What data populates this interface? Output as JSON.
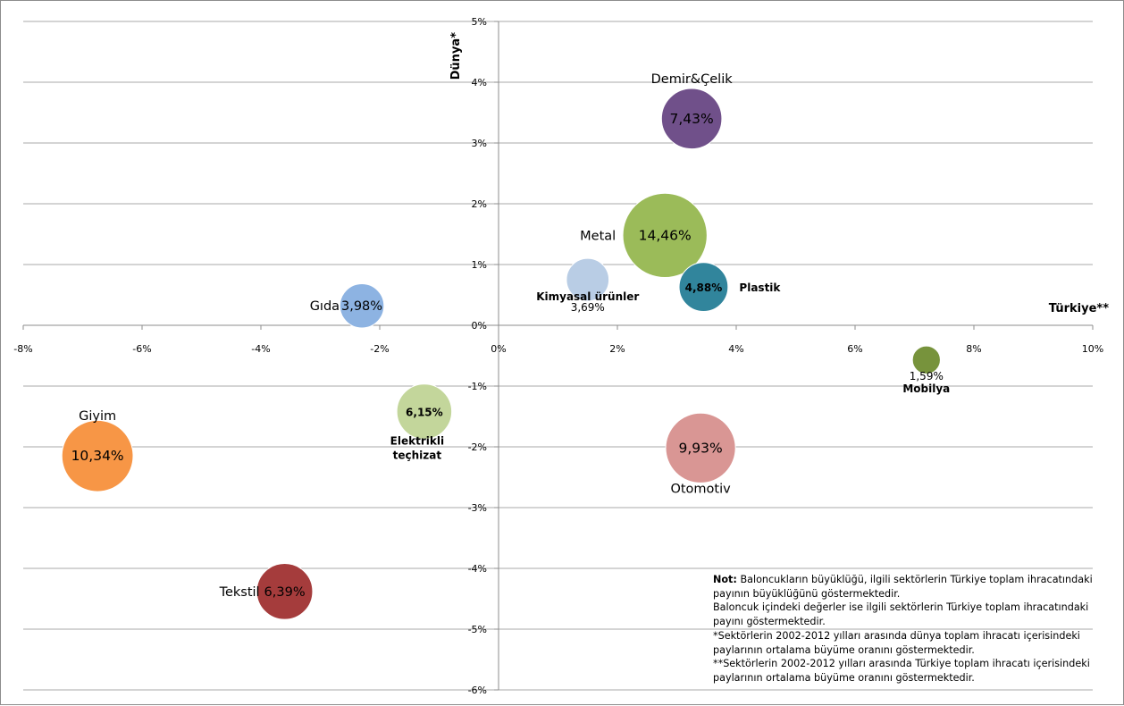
{
  "chart_data": {
    "type": "scatter",
    "subtype": "bubble",
    "xlabel": "Türkiye**",
    "ylabel": "Dünya*",
    "xlim": [
      -8,
      10
    ],
    "ylim": [
      -6,
      5
    ],
    "x_ticks": [
      "-8%",
      "-6%",
      "-4%",
      "-2%",
      "0%",
      "2%",
      "4%",
      "6%",
      "8%",
      "10%"
    ],
    "y_ticks": [
      "5%",
      "4%",
      "3%",
      "2%",
      "1%",
      "0%",
      "-1%",
      "-2%",
      "-3%",
      "-4%",
      "-5%",
      "-6%"
    ],
    "grid": "horizontal",
    "series": [
      {
        "name": "Demir&Çelik",
        "x": 3.25,
        "y": 3.4,
        "size": 7.43,
        "value_label": "7,43%",
        "color": "#70508a"
      },
      {
        "name": "Metal",
        "x": 2.8,
        "y": 1.48,
        "size": 14.46,
        "value_label": "14,46%",
        "color": "#9bbb59"
      },
      {
        "name": "Kimyasal ürünler",
        "x": 1.5,
        "y": 0.75,
        "size": 3.69,
        "value_label": "3,69%",
        "color": "#b9cde5"
      },
      {
        "name": "Plastik",
        "x": 3.45,
        "y": 0.63,
        "size": 4.88,
        "value_label": "4,88%",
        "color": "#31859c"
      },
      {
        "name": "Gıda",
        "x": -2.3,
        "y": 0.32,
        "size": 3.98,
        "value_label": "3,98%",
        "color": "#8db3e2"
      },
      {
        "name": "Mobilya",
        "x": 7.2,
        "y": -0.57,
        "size": 1.59,
        "value_label": "1,59%",
        "color": "#77933c"
      },
      {
        "name": "Elektrikli teçhizat",
        "x": -1.25,
        "y": -1.42,
        "size": 6.15,
        "value_label": "6,15%",
        "color": "#c3d69b"
      },
      {
        "name": "Giyim",
        "x": -6.75,
        "y": -2.15,
        "size": 10.34,
        "value_label": "10,34%",
        "color": "#f79646"
      },
      {
        "name": "Otomotiv",
        "x": 3.4,
        "y": -2.02,
        "size": 9.93,
        "value_label": "9,93%",
        "color": "#d99694"
      },
      {
        "name": "Tekstil",
        "x": -3.6,
        "y": -4.38,
        "size": 6.39,
        "value_label": "6,39%",
        "color": "#a53c3c"
      }
    ],
    "note": {
      "title": "Not:",
      "lines": [
        "Baloncukların büyüklüğü, ilgili sektörlerin Türkiye toplam ihracatındaki payının büyüklüğünü göstermektedir.",
        "Baloncuk içindeki değerler ise ilgili sektörlerin Türkiye toplam ihracatındaki payını göstermektedir.",
        "*Sektörlerin 2002-2012 yılları arasında dünya toplam ihracatı içerisindeki paylarının ortalama büyüme oranını göstermektedir.",
        "**Sektörlerin 2002-2012 yılları arasında Türkiye toplam ihracatı içerisindeki paylarının ortalama büyüme oranını göstermektedir."
      ]
    }
  }
}
